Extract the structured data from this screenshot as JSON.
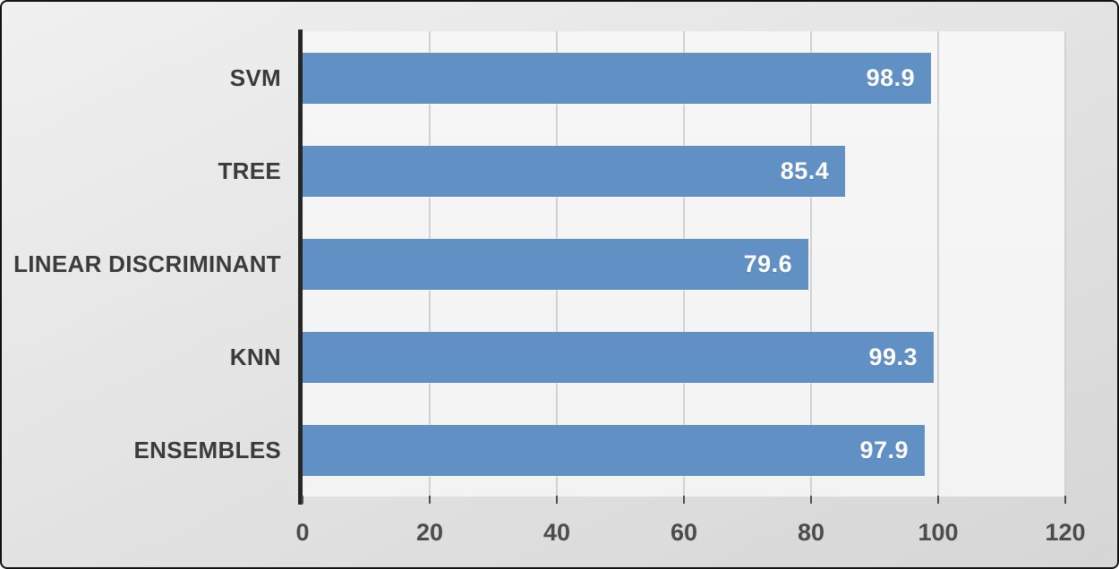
{
  "chart_data": {
    "type": "bar",
    "orientation": "horizontal",
    "title": "",
    "xlabel": "",
    "ylabel": "",
    "categories": [
      "SVM",
      "TREE",
      "LINEAR DISCRIMINANT",
      "KNN",
      "ENSEMBLES"
    ],
    "values": [
      98.9,
      85.4,
      79.6,
      99.3,
      97.9
    ],
    "value_labels": [
      "98.9",
      "85.4",
      "79.6",
      "99.3",
      "97.9"
    ],
    "xlim": [
      0,
      120
    ],
    "x_ticks": [
      "0",
      "20",
      "40",
      "60",
      "80",
      "100",
      "120"
    ],
    "x_tick_values": [
      0,
      20,
      40,
      60,
      80,
      100,
      120
    ],
    "grid": true,
    "legend": false,
    "colors": {
      "bar": "#6190c5",
      "value_label": "#ffffff",
      "category_label": "#3b3b3b",
      "tick_label": "#4c4c4c",
      "axis_line": "#262626",
      "gridline": "#d2d2d2",
      "frame_border": "#111111",
      "background_outer": "#e2e2e2",
      "background_plot": "#f3f3f3"
    }
  }
}
